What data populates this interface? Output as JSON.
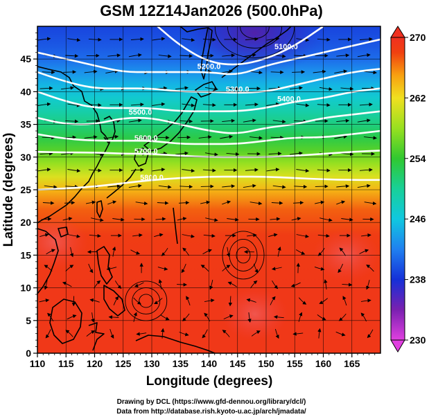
{
  "title": "GSM 12Z14Jan2026 (500.0hPa)",
  "x_axis_label": "Longitude (degrees)",
  "y_axis_label": "Latitude  (degrees)",
  "credits": {
    "line1": "Drawing by DCL (https://www.gfd-dennou.org/library/dcl/)",
    "line2": "Data from http://database.rish.kyoto-u.ac.jp/arch/jmadata/"
  },
  "colors": {
    "contour": "#ffffff",
    "coastline": "#000000",
    "streamline": "#000000",
    "grid": "#000000"
  },
  "chart_data": {
    "type": "heatmap",
    "title": "GSM 12Z14Jan2026 (500.0hPa)",
    "xlabel": "Longitude (degrees)",
    "ylabel": "Latitude  (degrees)",
    "xlim": [
      110,
      170
    ],
    "ylim": [
      0,
      50
    ],
    "x_ticks": [
      110,
      115,
      120,
      125,
      130,
      135,
      140,
      145,
      150,
      155,
      160,
      165
    ],
    "y_ticks": [
      0,
      5,
      10,
      15,
      20,
      25,
      30,
      35,
      40,
      45
    ],
    "grid_lon_step": 5,
    "grid_lat_step": 5,
    "field": "temperature (K), shaded",
    "colorbar": {
      "min": 230,
      "max": 270,
      "ticks": [
        230,
        238,
        246,
        254,
        262,
        270
      ],
      "stops": [
        {
          "value": 230,
          "color": "#e040e0"
        },
        {
          "value": 234,
          "color": "#7a20b0"
        },
        {
          "value": 238,
          "color": "#1530d8"
        },
        {
          "value": 242,
          "color": "#2080f0"
        },
        {
          "value": 246,
          "color": "#10c8e0"
        },
        {
          "value": 250,
          "color": "#18d098"
        },
        {
          "value": 254,
          "color": "#30c830"
        },
        {
          "value": 258,
          "color": "#98e020"
        },
        {
          "value": 262,
          "color": "#f0e020"
        },
        {
          "value": 265,
          "color": "#f8a010"
        },
        {
          "value": 268,
          "color": "#f04010"
        },
        {
          "value": 270,
          "color": "#f03020"
        }
      ]
    },
    "temperature_profile": [
      {
        "lat": 0,
        "value": 269
      },
      {
        "lat": 10,
        "value": 269
      },
      {
        "lat": 18,
        "value": 268.5
      },
      {
        "lat": 22,
        "value": 267
      },
      {
        "lat": 25,
        "value": 264
      },
      {
        "lat": 27,
        "value": 261
      },
      {
        "lat": 29,
        "value": 258
      },
      {
        "lat": 31,
        "value": 255.5
      },
      {
        "lat": 33,
        "value": 253
      },
      {
        "lat": 35,
        "value": 251
      },
      {
        "lat": 37,
        "value": 249
      },
      {
        "lat": 39,
        "value": 247
      },
      {
        "lat": 41,
        "value": 245
      },
      {
        "lat": 43,
        "value": 243
      },
      {
        "lat": 45,
        "value": 241
      },
      {
        "lat": 47,
        "value": 240
      },
      {
        "lat": 50,
        "value": 239
      }
    ],
    "cold_core": {
      "lon": 148,
      "lat": 49,
      "value": 234
    },
    "warm_spots": [
      {
        "lon": 113,
        "lat": 17,
        "value": 270
      },
      {
        "lon": 164,
        "lat": 15,
        "value": 270
      },
      {
        "lon": 148,
        "lat": 6,
        "value": 270
      }
    ],
    "height_contours": [
      {
        "label": "5100.0",
        "label_at": [
          153.5,
          46.5
        ],
        "path": [
          [
            131,
            50
          ],
          [
            135,
            47
          ],
          [
            140,
            44.5
          ],
          [
            145,
            44
          ],
          [
            150,
            45
          ],
          [
            155,
            47
          ],
          [
            160,
            50
          ]
        ]
      },
      {
        "label": "5200.0",
        "label_at": [
          140,
          43.5
        ],
        "path": [
          [
            110,
            46
          ],
          [
            115,
            45
          ],
          [
            120,
            44
          ],
          [
            125,
            43
          ],
          [
            130,
            43
          ],
          [
            135,
            43
          ],
          [
            140,
            43
          ],
          [
            145,
            42.5
          ],
          [
            150,
            44
          ],
          [
            155,
            45
          ],
          [
            160,
            46
          ],
          [
            165,
            47
          ],
          [
            170,
            48
          ]
        ]
      },
      {
        "label": "5300.0",
        "label_at": [
          145,
          40
        ],
        "path": [
          [
            110,
            43
          ],
          [
            115,
            41.5
          ],
          [
            120,
            40.5
          ],
          [
            125,
            40.5
          ],
          [
            130,
            40.5
          ],
          [
            135,
            40
          ],
          [
            140,
            40
          ],
          [
            145,
            39.8
          ],
          [
            150,
            40
          ],
          [
            155,
            41
          ],
          [
            160,
            42
          ],
          [
            165,
            43
          ],
          [
            170,
            43.5
          ]
        ]
      },
      {
        "label": "5400.0",
        "label_at": [
          154,
          38.5
        ],
        "path": [
          [
            110,
            40
          ],
          [
            115,
            38.5
          ],
          [
            120,
            37.5
          ],
          [
            125,
            37.5
          ],
          [
            130,
            37.5
          ],
          [
            135,
            37
          ],
          [
            140,
            37
          ],
          [
            145,
            37
          ],
          [
            150,
            37.5
          ],
          [
            155,
            38.5
          ],
          [
            160,
            39
          ],
          [
            165,
            40
          ],
          [
            170,
            40.5
          ]
        ]
      },
      {
        "label": "5500.0",
        "label_at": [
          128,
          36.5
        ],
        "path": [
          [
            110,
            36
          ],
          [
            115,
            35
          ],
          [
            120,
            35
          ],
          [
            125,
            36
          ],
          [
            130,
            36
          ],
          [
            135,
            35
          ],
          [
            140,
            34
          ],
          [
            145,
            33.5
          ],
          [
            150,
            34.5
          ],
          [
            155,
            35
          ],
          [
            160,
            36
          ],
          [
            165,
            36.5
          ],
          [
            170,
            37
          ]
        ]
      },
      {
        "label": "5600.0",
        "label_at": [
          129,
          32.5
        ],
        "path": [
          [
            110,
            33.5
          ],
          [
            115,
            32.8
          ],
          [
            120,
            32.5
          ],
          [
            125,
            32.5
          ],
          [
            130,
            32.5
          ],
          [
            135,
            32
          ],
          [
            140,
            32
          ],
          [
            145,
            32
          ],
          [
            150,
            32.5
          ],
          [
            155,
            33
          ],
          [
            160,
            33
          ],
          [
            165,
            33.5
          ],
          [
            170,
            34
          ]
        ]
      },
      {
        "label": "5700.0",
        "label_at": [
          129,
          30.5
        ],
        "path": [
          [
            110,
            30.8
          ],
          [
            115,
            30.7
          ],
          [
            120,
            30.7
          ],
          [
            125,
            30.5
          ],
          [
            130,
            30.5
          ],
          [
            135,
            30.2
          ],
          [
            140,
            30
          ],
          [
            145,
            30
          ],
          [
            150,
            30
          ],
          [
            155,
            30.2
          ],
          [
            160,
            30.5
          ],
          [
            165,
            30.8
          ],
          [
            170,
            31
          ]
        ]
      },
      {
        "label": "5800.0",
        "label_at": [
          130,
          26.5
        ],
        "path": [
          [
            110,
            25
          ],
          [
            115,
            25.2
          ],
          [
            120,
            25.5
          ],
          [
            125,
            26
          ],
          [
            130,
            26.5
          ],
          [
            135,
            26.8
          ],
          [
            140,
            27
          ],
          [
            145,
            27
          ],
          [
            150,
            27
          ],
          [
            155,
            26.8
          ],
          [
            160,
            26.6
          ],
          [
            165,
            26.5
          ],
          [
            170,
            26.5
          ]
        ]
      }
    ]
  }
}
